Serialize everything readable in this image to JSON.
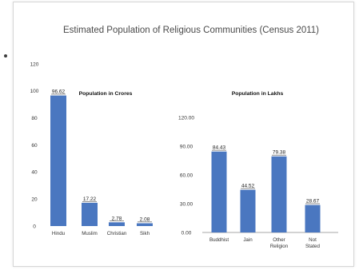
{
  "title": "Estimated Population of Religious Communities (Census 2011)",
  "colors": {
    "bar": "#4a77c0",
    "axis": "#8a8a8a"
  },
  "chart_data": [
    {
      "type": "bar",
      "title": "Population in Crores",
      "categories": [
        "Hindu",
        "Muslim",
        "Christian",
        "Sikh"
      ],
      "values": [
        96.62,
        17.22,
        2.78,
        2.08
      ],
      "value_labels": [
        "96.62",
        "17.22",
        "2.78",
        "2.08"
      ],
      "yticks": [
        "0",
        "20",
        "40",
        "60",
        "80",
        "100",
        "120"
      ],
      "ylim": [
        0,
        120
      ],
      "grid": false
    },
    {
      "type": "bar",
      "title": "Population in Lakhs",
      "categories": [
        "Buddhist",
        "Jain",
        "Other Religion",
        "Not Stated"
      ],
      "category_lines": [
        [
          "Buddhist"
        ],
        [
          "Jain"
        ],
        [
          "Other",
          "Religion"
        ],
        [
          "Not",
          "Stated"
        ]
      ],
      "values": [
        84.43,
        44.52,
        79.38,
        28.67
      ],
      "value_labels": [
        "84.43",
        "44.52",
        "79.38",
        "28.67"
      ],
      "yticks": [
        "0.00",
        "30.00",
        "60.00",
        "90.00",
        "120.00"
      ],
      "ylim": [
        0,
        120
      ],
      "grid": false
    }
  ]
}
